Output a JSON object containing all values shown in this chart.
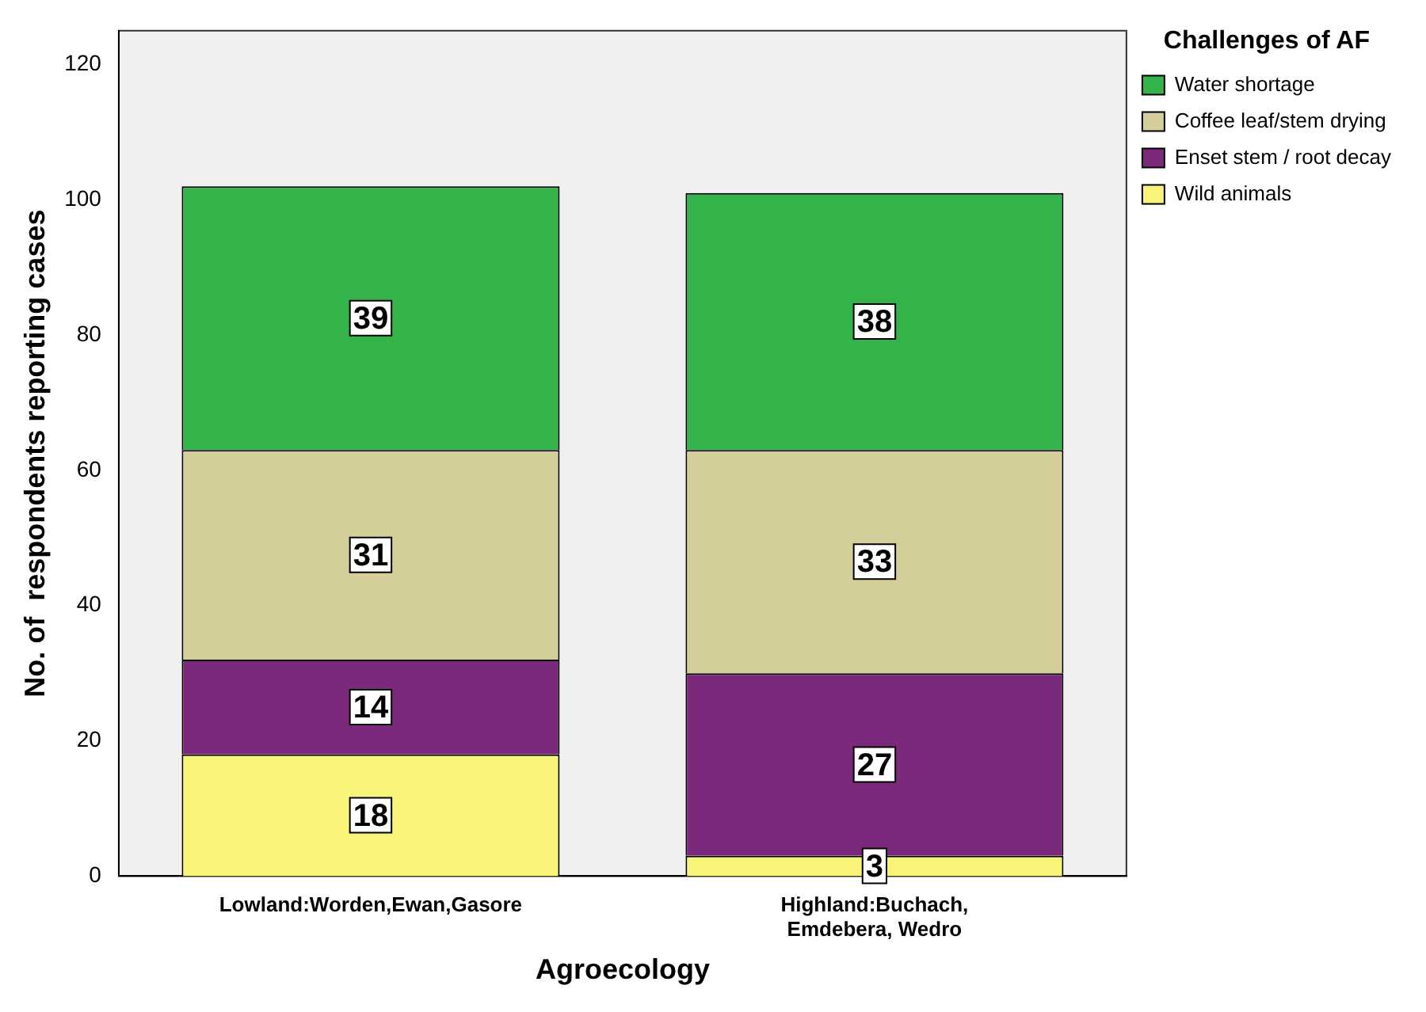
{
  "chart_data": {
    "type": "bar",
    "stacked": true,
    "xlabel": "Agroecology",
    "ylabel": "No. of  respondents reporting cases",
    "legend_title": "Challenges of AF",
    "legend": "top right",
    "grid": false,
    "data_labels": true,
    "categories": [
      "Lowland:Worden,Ewan,Gasore",
      "Highland:Buchach, Emdebera, Wedro"
    ],
    "ylim": [
      0,
      125
    ],
    "yticks": [
      0,
      20,
      40,
      60,
      80,
      100,
      120
    ],
    "series": [
      {
        "name": "Wild animals",
        "color": "#f8f47a",
        "values": [
          18,
          3
        ]
      },
      {
        "name": "Enset stem / root decay",
        "color": "#7b2a7b",
        "values": [
          14,
          27
        ]
      },
      {
        "name": "Coffee leaf/stem drying",
        "color": "#d3ce9a",
        "values": [
          31,
          33
        ]
      },
      {
        "name": "Water shortage",
        "color": "#33b34a",
        "values": [
          39,
          38
        ]
      }
    ]
  }
}
